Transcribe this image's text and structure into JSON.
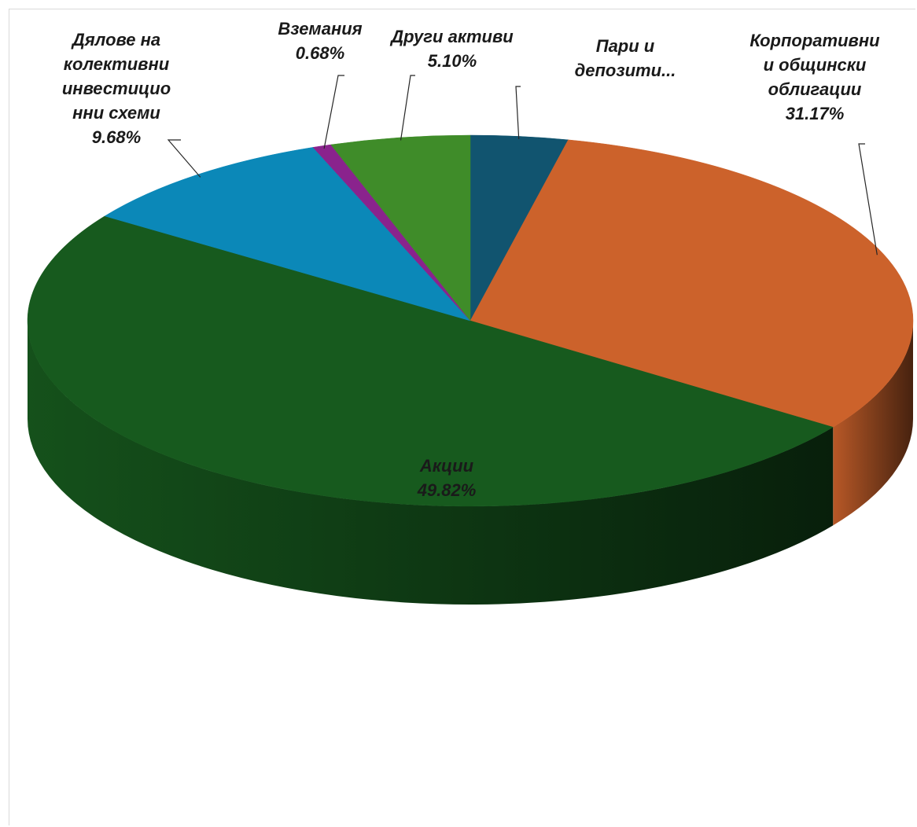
{
  "chart_data": {
    "type": "pie",
    "style": "3d",
    "title": "",
    "legend": "none",
    "slices": [
      {
        "label_lines": [
          "Пари и",
          "депозити..."
        ],
        "value": 3.55,
        "value_label": "",
        "color": "#11546f"
      },
      {
        "label_lines": [
          "Корпоративни",
          "и общински",
          "облигации"
        ],
        "value": 31.17,
        "value_label": "31.17%",
        "color": "#cc622b"
      },
      {
        "label_lines": [
          "Акции"
        ],
        "value": 49.82,
        "value_label": "49.82%",
        "color": "#175a1e"
      },
      {
        "label_lines": [
          "Дялове на",
          "колективни",
          "инвестицио",
          "нни схеми"
        ],
        "value": 9.68,
        "value_label": "9.68%",
        "color": "#0b88b8"
      },
      {
        "label_lines": [
          "Вземания"
        ],
        "value": 0.68,
        "value_label": "0.68%",
        "color": "#8a238d"
      },
      {
        "label_lines": [
          "Други активи"
        ],
        "value": 5.1,
        "value_label": "5.10%",
        "color": "#3f8c29"
      }
    ]
  }
}
